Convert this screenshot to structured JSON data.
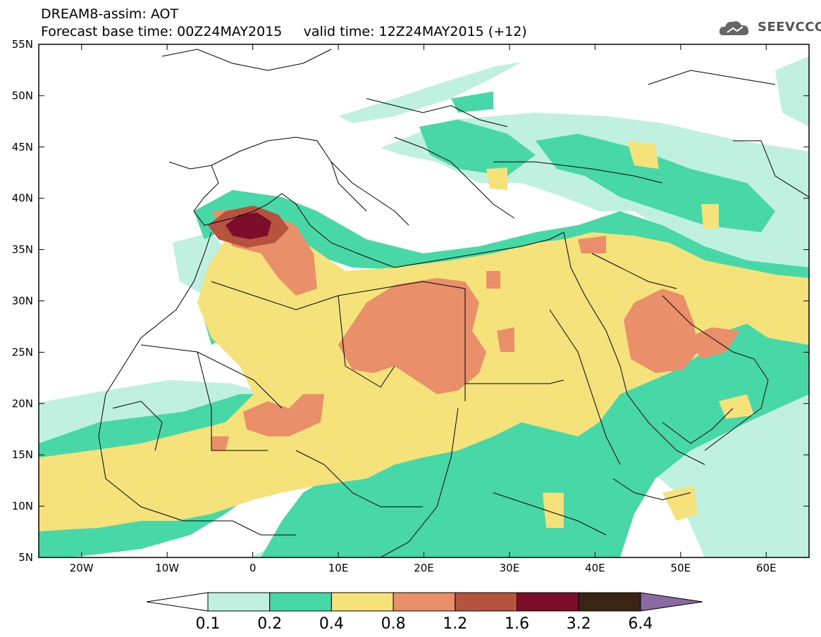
{
  "header": {
    "title": "DREAM8-assim: AOT",
    "base_time_label": "Forecast base time: 00Z24MAY2015",
    "valid_time_label": "valid time: 12Z24MAY2015 (+12)",
    "logo_text": "SEEVCCC"
  },
  "map": {
    "lat_labels": [
      "55N",
      "50N",
      "45N",
      "40N",
      "35N",
      "30N",
      "25N",
      "20N",
      "15N",
      "10N",
      "5N"
    ],
    "lon_labels": [
      "20W",
      "10W",
      "0",
      "10E",
      "20E",
      "30E",
      "40E",
      "50E",
      "60E"
    ],
    "lat_range": [
      5,
      55
    ],
    "lon_range": [
      -25,
      65
    ]
  },
  "colorbar": {
    "labels": [
      "0.1",
      "0.2",
      "0.4",
      "0.8",
      "1.2",
      "1.6",
      "3.2",
      "6.4"
    ],
    "colors": [
      "#ffffff",
      "#bff0e0",
      "#48d8a8",
      "#f5e27a",
      "#e98f6a",
      "#b5533f",
      "#7c0e2c",
      "#3a2414",
      "#8a6aa0"
    ]
  }
}
